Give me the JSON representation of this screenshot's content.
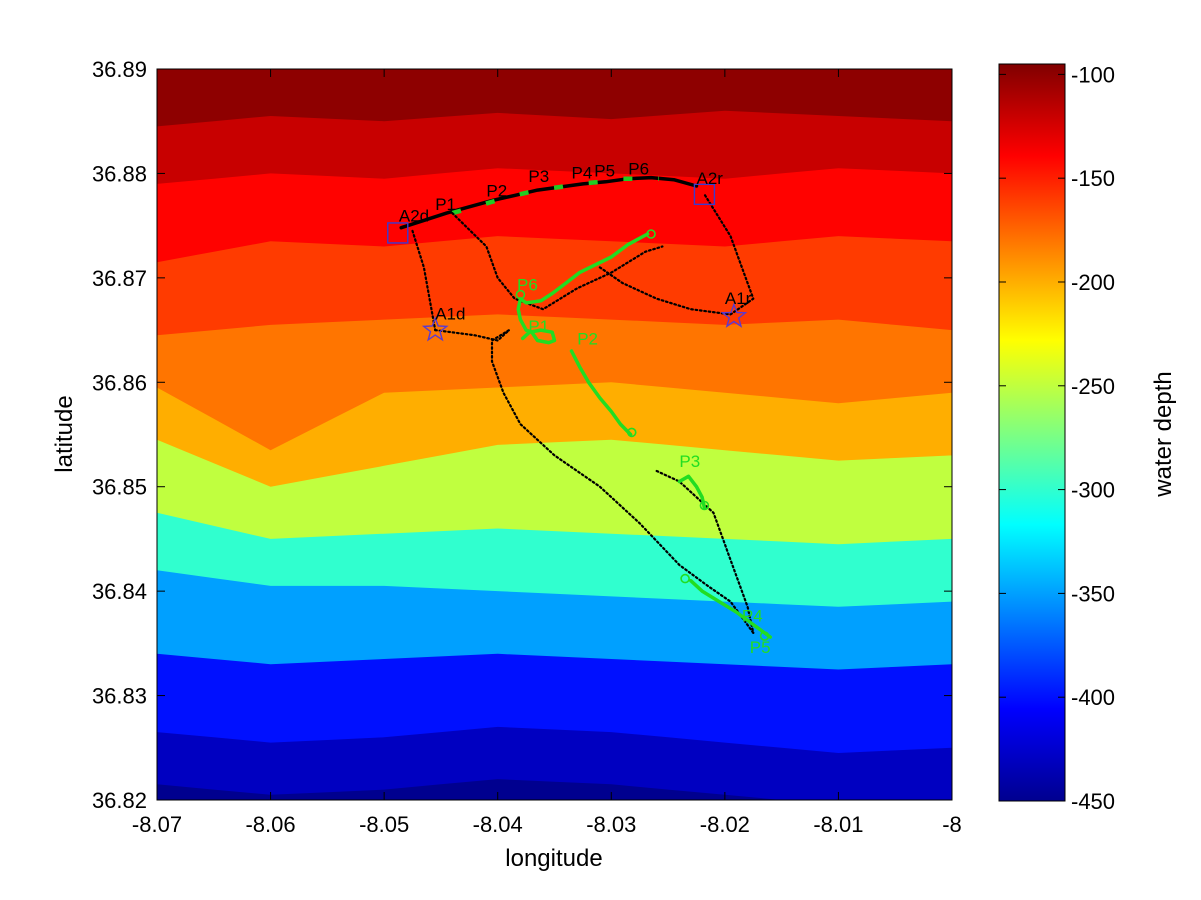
{
  "chart_data": {
    "type": "heatmap",
    "title": "",
    "xlabel": "longitude",
    "ylabel": "latitude",
    "colorbar_label": "water depth",
    "xlim": [
      -8.07,
      -8.0
    ],
    "ylim": [
      36.82,
      36.89
    ],
    "clim": [
      -450,
      -95
    ],
    "xticks": [
      -8.07,
      -8.06,
      -8.05,
      -8.04,
      -8.03,
      -8.02,
      -8.01,
      -8.0
    ],
    "xtick_labels": [
      "-8.07",
      "-8.06",
      "-8.05",
      "-8.04",
      "-8.03",
      "-8.02",
      "-8.01",
      "-8"
    ],
    "yticks": [
      36.82,
      36.83,
      36.84,
      36.85,
      36.86,
      36.87,
      36.88,
      36.89
    ],
    "ytick_labels": [
      "36.82",
      "36.83",
      "36.84",
      "36.85",
      "36.86",
      "36.87",
      "36.88",
      "36.89"
    ],
    "cticks": [
      -450,
      -400,
      -350,
      -300,
      -250,
      -200,
      -150,
      -100
    ],
    "ctick_labels": [
      "-450",
      "-400",
      "-350",
      "-300",
      "-250",
      "-200",
      "-150",
      "-100"
    ],
    "colormap": "jet",
    "bathymetry_contours": [
      {
        "depth": -100,
        "lat": [
          36.8845,
          36.8855,
          36.885,
          36.8858,
          36.8852,
          36.886,
          36.8855,
          36.885
        ]
      },
      {
        "depth": -120,
        "lat": [
          36.879,
          36.88,
          36.8795,
          36.8805,
          36.88,
          36.8795,
          36.8805,
          36.88
        ]
      },
      {
        "depth": -140,
        "lat": [
          36.8715,
          36.8735,
          36.873,
          36.874,
          36.8735,
          36.873,
          36.874,
          36.8735
        ]
      },
      {
        "depth": -160,
        "lat": [
          36.8645,
          36.8655,
          36.866,
          36.8665,
          36.866,
          36.8655,
          36.866,
          36.865
        ]
      },
      {
        "depth": -180,
        "lat": [
          36.8595,
          36.8535,
          36.859,
          36.8595,
          36.86,
          36.859,
          36.858,
          36.859
        ]
      },
      {
        "depth": -200,
        "lat": [
          36.8545,
          36.85,
          36.852,
          36.854,
          36.8545,
          36.8535,
          36.8525,
          36.853
        ]
      },
      {
        "depth": -250,
        "lat": [
          36.8475,
          36.845,
          36.8455,
          36.846,
          36.8455,
          36.845,
          36.8445,
          36.845
        ]
      },
      {
        "depth": -300,
        "lat": [
          36.842,
          36.8405,
          36.8405,
          36.84,
          36.8395,
          36.839,
          36.8385,
          36.839
        ]
      },
      {
        "depth": -350,
        "lat": [
          36.834,
          36.833,
          36.8335,
          36.834,
          36.8335,
          36.833,
          36.8325,
          36.833
        ]
      },
      {
        "depth": -400,
        "lat": [
          36.8265,
          36.8255,
          36.826,
          36.827,
          36.8265,
          36.8255,
          36.8245,
          36.825
        ]
      },
      {
        "depth": -430,
        "lat": [
          36.8215,
          36.8205,
          36.821,
          36.822,
          36.8215,
          36.8205,
          36.8195,
          36.82
        ]
      },
      {
        "depth": -450,
        "lat": [
          36.817,
          36.816,
          36.8165,
          36.8175,
          36.817,
          36.816,
          36.815,
          36.8155
        ]
      }
    ],
    "series": [
      {
        "style": "solid",
        "color": "#000000",
        "points": [
          [
            -8.0485,
            36.8748
          ],
          [
            -8.0465,
            36.8755
          ],
          [
            -8.0445,
            36.8762
          ],
          [
            -8.0425,
            36.8768
          ],
          [
            -8.0405,
            36.8774
          ],
          [
            -8.0385,
            36.8779
          ],
          [
            -8.0365,
            36.8784
          ],
          [
            -8.0345,
            36.8787
          ],
          [
            -8.0325,
            36.879
          ],
          [
            -8.0305,
            36.8792
          ],
          [
            -8.0285,
            36.8795
          ],
          [
            -8.0265,
            36.8796
          ],
          [
            -8.0245,
            36.8794
          ],
          [
            -8.0225,
            36.8788
          ]
        ]
      },
      {
        "style": "dashes",
        "color": "#22cc22",
        "points": [
          [
            -8.044,
            36.8762
          ],
          [
            -8.043,
            36.8765
          ],
          [
            -8.0395,
            36.8776
          ],
          [
            -8.0385,
            36.8779
          ],
          [
            -8.036,
            36.8785
          ],
          [
            -8.0345,
            36.8787
          ],
          [
            -8.033,
            36.879
          ],
          [
            -8.0318,
            36.8791
          ],
          [
            -8.0298,
            36.8793
          ],
          [
            -8.029,
            36.8795
          ],
          [
            -8.027,
            36.8795
          ],
          [
            -8.0258,
            36.8795
          ]
        ]
      },
      {
        "style": "dotted",
        "color": "#000000",
        "points": [
          [
            -8.0475,
            36.8745
          ],
          [
            -8.0465,
            36.871
          ],
          [
            -8.0455,
            36.865
          ]
        ]
      },
      {
        "style": "dotted",
        "color": "#000000",
        "points": [
          [
            -8.0455,
            36.865
          ],
          [
            -8.042,
            36.8645
          ],
          [
            -8.04,
            36.864
          ],
          [
            -8.039,
            36.865
          ],
          [
            -8.0405,
            36.864
          ],
          [
            -8.0405,
            36.862
          ],
          [
            -8.0395,
            36.859
          ],
          [
            -8.038,
            36.856
          ],
          [
            -8.035,
            36.853
          ],
          [
            -8.031,
            36.85
          ],
          [
            -8.0275,
            36.8465
          ],
          [
            -8.024,
            36.8425
          ],
          [
            -8.0215,
            36.8405
          ],
          [
            -8.0195,
            36.839
          ],
          [
            -8.0175,
            36.836
          ]
        ]
      },
      {
        "style": "dotted",
        "color": "#000000",
        "points": [
          [
            -8.044,
            36.8762
          ],
          [
            -8.041,
            36.873
          ],
          [
            -8.04,
            36.87
          ],
          [
            -8.0385,
            36.868
          ],
          [
            -8.036,
            36.867
          ],
          [
            -8.033,
            36.869
          ],
          [
            -8.03,
            36.8705
          ],
          [
            -8.027,
            36.8725
          ],
          [
            -8.0255,
            36.873
          ]
        ]
      },
      {
        "style": "dotted",
        "color": "#000000",
        "points": [
          [
            -8.031,
            36.871
          ],
          [
            -8.029,
            36.8695
          ],
          [
            -8.026,
            36.868
          ],
          [
            -8.023,
            36.867
          ],
          [
            -8.0195,
            36.8665
          ],
          [
            -8.0175,
            36.868
          ],
          [
            -8.0195,
            36.874
          ],
          [
            -8.0218,
            36.878
          ]
        ]
      },
      {
        "style": "dotted",
        "color": "#000000",
        "points": [
          [
            -8.026,
            36.8515
          ],
          [
            -8.024,
            36.8505
          ],
          [
            -8.021,
            36.8475
          ],
          [
            -8.0195,
            36.843
          ],
          [
            -8.018,
            36.8385
          ],
          [
            -8.0175,
            36.836
          ]
        ]
      },
      {
        "style": "solid",
        "color": "#22dd22",
        "points": [
          [
            -8.0268,
            36.8742
          ],
          [
            -8.0285,
            36.8732
          ],
          [
            -8.03,
            36.872
          ],
          [
            -8.0315,
            36.8712
          ],
          [
            -8.0328,
            36.8705
          ],
          [
            -8.034,
            36.8695
          ],
          [
            -8.0352,
            36.8685
          ],
          [
            -8.0362,
            36.8678
          ],
          [
            -8.0375,
            36.8676
          ],
          [
            -8.038,
            36.868
          ],
          [
            -8.0382,
            36.867
          ],
          [
            -8.038,
            36.866
          ],
          [
            -8.0375,
            36.865
          ],
          [
            -8.037,
            36.8648
          ],
          [
            -8.0365,
            36.864
          ],
          [
            -8.0355,
            36.8638
          ],
          [
            -8.035,
            36.864
          ],
          [
            -8.0352,
            36.8648
          ],
          [
            -8.0362,
            36.865
          ],
          [
            -8.0372,
            36.8648
          ],
          [
            -8.0378,
            36.8642
          ]
        ]
      },
      {
        "style": "solid",
        "color": "#22dd22",
        "points": [
          [
            -8.0335,
            36.863
          ],
          [
            -8.0328,
            36.8615
          ],
          [
            -8.032,
            36.86
          ],
          [
            -8.031,
            36.8585
          ],
          [
            -8.03,
            36.8572
          ],
          [
            -8.0292,
            36.856
          ],
          [
            -8.0283,
            36.855
          ]
        ]
      },
      {
        "style": "solid",
        "color": "#22dd22",
        "points": [
          [
            -8.024,
            36.8505
          ],
          [
            -8.0232,
            36.851
          ],
          [
            -8.0225,
            36.85
          ],
          [
            -8.022,
            36.849
          ],
          [
            -8.0218,
            36.848
          ]
        ]
      },
      {
        "style": "solid",
        "color": "#22dd22",
        "points": [
          [
            -8.023,
            36.841
          ],
          [
            -8.022,
            36.84
          ],
          [
            -8.0205,
            36.839
          ],
          [
            -8.019,
            36.838
          ],
          [
            -8.0175,
            36.8368
          ],
          [
            -8.016,
            36.8356
          ]
        ]
      }
    ],
    "markers": [
      {
        "shape": "square",
        "lon": -8.0488,
        "lat": 36.8743,
        "label": "A2d"
      },
      {
        "shape": "square",
        "lon": -8.0218,
        "lat": 36.878,
        "label": "A2r"
      },
      {
        "shape": "star",
        "lon": -8.0455,
        "lat": 36.865,
        "label": "A1d"
      },
      {
        "shape": "star",
        "lon": -8.0192,
        "lat": 36.8663,
        "label": "A1r"
      },
      {
        "shape": "circle",
        "lon": -8.0265,
        "lat": 36.8742,
        "label": ""
      },
      {
        "shape": "circle",
        "lon": -8.038,
        "lat": 36.8684,
        "label": ""
      },
      {
        "shape": "circle",
        "lon": -8.0282,
        "lat": 36.8552,
        "label": ""
      },
      {
        "shape": "circle",
        "lon": -8.0218,
        "lat": 36.8482,
        "label": ""
      },
      {
        "shape": "circle",
        "lon": -8.0235,
        "lat": 36.8412,
        "label": ""
      },
      {
        "shape": "circle",
        "lon": -8.0165,
        "lat": 36.8357,
        "label": ""
      }
    ],
    "annotations": [
      {
        "text": "P1",
        "lon": -8.0455,
        "lat": 36.8765,
        "color": "#000000"
      },
      {
        "text": "P2",
        "lon": -8.041,
        "lat": 36.8778,
        "color": "#000000"
      },
      {
        "text": "P3",
        "lon": -8.0373,
        "lat": 36.8792,
        "color": "#000000"
      },
      {
        "text": "P4",
        "lon": -8.0335,
        "lat": 36.8795,
        "color": "#000000"
      },
      {
        "text": "P5",
        "lon": -8.0315,
        "lat": 36.8797,
        "color": "#000000"
      },
      {
        "text": "P6",
        "lon": -8.0285,
        "lat": 36.8799,
        "color": "#000000"
      },
      {
        "text": "A2d",
        "lon": -8.0487,
        "lat": 36.8754,
        "color": "#000000"
      },
      {
        "text": "A2r",
        "lon": -8.0225,
        "lat": 36.879,
        "color": "#000000"
      },
      {
        "text": "A1d",
        "lon": -8.0455,
        "lat": 36.866,
        "color": "#000000"
      },
      {
        "text": "A1r",
        "lon": -8.02,
        "lat": 36.8675,
        "color": "#000000"
      },
      {
        "text": "P6",
        "lon": -8.0383,
        "lat": 36.8688,
        "color": "#22dd22"
      },
      {
        "text": "P1",
        "lon": -8.0373,
        "lat": 36.8648,
        "color": "#22dd22"
      },
      {
        "text": "P2",
        "lon": -8.033,
        "lat": 36.8636,
        "color": "#22dd22"
      },
      {
        "text": "P3",
        "lon": -8.024,
        "lat": 36.8519,
        "color": "#22dd22"
      },
      {
        "text": "P4",
        "lon": -8.0185,
        "lat": 36.8371,
        "color": "#22dd22"
      },
      {
        "text": "P5",
        "lon": -8.0178,
        "lat": 36.8341,
        "color": "#22dd22"
      }
    ]
  }
}
